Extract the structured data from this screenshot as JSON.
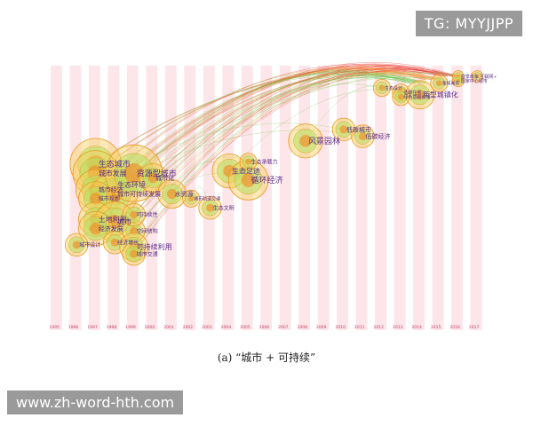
{
  "watermark_top": "TG: MYYJJPP",
  "watermark_bottom": "www.zh-word-hth.com",
  "caption": "(a) “城市 + 可持续”",
  "colors": {
    "stripe": "#fde6ea",
    "arc_red": "#e8342a",
    "arc_orange": "#f28c28",
    "arc_green": "#6cc24a",
    "label": "#5b2a86"
  },
  "chart_data": {
    "type": "scatter",
    "title": "",
    "xlabel": "",
    "ylabel": "",
    "x_ticks": [
      "1995",
      "1996",
      "1997",
      "1998",
      "1999",
      "2000",
      "2001",
      "2002",
      "2003",
      "2004",
      "2005",
      "2006",
      "2007",
      "2008",
      "2009",
      "2010",
      "2011",
      "2012",
      "2013",
      "2014",
      "2015",
      "2016",
      "2017"
    ],
    "nodes": [
      {
        "label": "生态城市",
        "year": 1997,
        "row": 0.38,
        "size": 9,
        "font": 9
      },
      {
        "label": "城市发展",
        "year": 1997,
        "row": 0.42,
        "size": 8,
        "font": 8
      },
      {
        "label": "生态环境",
        "year": 1998,
        "row": 0.47,
        "size": 7,
        "font": 8
      },
      {
        "label": "城市经济",
        "year": 1997,
        "row": 0.49,
        "size": 7,
        "font": 7
      },
      {
        "label": "城市可持续发展",
        "year": 1998,
        "row": 0.51,
        "size": 8,
        "font": 7
      },
      {
        "label": "资源型城市",
        "year": 1999,
        "row": 0.42,
        "size": 10,
        "font": 9
      },
      {
        "label": "城市化",
        "year": 2000,
        "row": 0.44,
        "size": 5,
        "font": 7
      },
      {
        "label": "水资源",
        "year": 2001,
        "row": 0.51,
        "size": 5,
        "font": 7
      },
      {
        "label": "城市规划",
        "year": 1997,
        "row": 0.53,
        "size": 6,
        "font": 6
      },
      {
        "label": "土地利用",
        "year": 1997,
        "row": 0.62,
        "size": 6,
        "font": 8
      },
      {
        "label": "城市",
        "year": 1998,
        "row": 0.63,
        "size": 7,
        "font": 8
      },
      {
        "label": "经济发展",
        "year": 1997,
        "row": 0.66,
        "size": 6,
        "font": 7
      },
      {
        "label": "空间结构",
        "year": 1999,
        "row": 0.67,
        "size": 4,
        "font": 6
      },
      {
        "label": "可持续性",
        "year": 1999,
        "row": 0.6,
        "size": 4,
        "font": 6
      },
      {
        "label": "城市设计",
        "year": 1996,
        "row": 0.73,
        "size": 4,
        "font": 6
      },
      {
        "label": "经济增长",
        "year": 1998,
        "row": 0.72,
        "size": 4,
        "font": 6
      },
      {
        "label": "可持续利用",
        "year": 1999,
        "row": 0.74,
        "size": 5,
        "font": 8
      },
      {
        "label": "城市交通",
        "year": 1999,
        "row": 0.77,
        "size": 4,
        "font": 6
      },
      {
        "label": "生态足迹",
        "year": 2004,
        "row": 0.41,
        "size": 6,
        "font": 8
      },
      {
        "label": "循环经济",
        "year": 2005,
        "row": 0.45,
        "size": 7,
        "font": 9
      },
      {
        "label": "生态承载力",
        "year": 2005,
        "row": 0.37,
        "size": 3,
        "font": 6
      },
      {
        "label": "生态文明",
        "year": 2003,
        "row": 0.57,
        "size": 4,
        "font": 6
      },
      {
        "label": "城市轨道交通",
        "year": 2002,
        "row": 0.53,
        "size": 3,
        "font": 5
      },
      {
        "label": "风景园林",
        "year": 2008,
        "row": 0.28,
        "size": 6,
        "font": 9
      },
      {
        "label": "低碳城市",
        "year": 2010,
        "row": 0.23,
        "size": 4,
        "font": 7
      },
      {
        "label": "低碳经济",
        "year": 2011,
        "row": 0.26,
        "size": 4,
        "font": 7
      },
      {
        "label": "生态设计",
        "year": 2012,
        "row": 0.05,
        "size": 3,
        "font": 5
      },
      {
        "label": "新型城镇化",
        "year": 2014,
        "row": 0.08,
        "size": 5,
        "font": 8
      },
      {
        "label": "低碳住宅",
        "year": 2013,
        "row": 0.07,
        "size": 3,
        "font": 5
      },
      {
        "label": "绿色基础设施",
        "year": 2013,
        "row": 0.09,
        "size": 3,
        "font": 5
      },
      {
        "label": "海绵城市",
        "year": 2015,
        "row": 0.03,
        "size": 3,
        "font": 5
      },
      {
        "label": "共享单车",
        "year": 2016,
        "row": 0.0,
        "size": 2,
        "font": 5
      },
      {
        "label": "国家中心城市",
        "year": 2016,
        "row": 0.02,
        "size": 2,
        "font": 5
      },
      {
        "label": "互联网+",
        "year": 2017,
        "row": 0.0,
        "size": 2,
        "font": 5
      }
    ]
  }
}
